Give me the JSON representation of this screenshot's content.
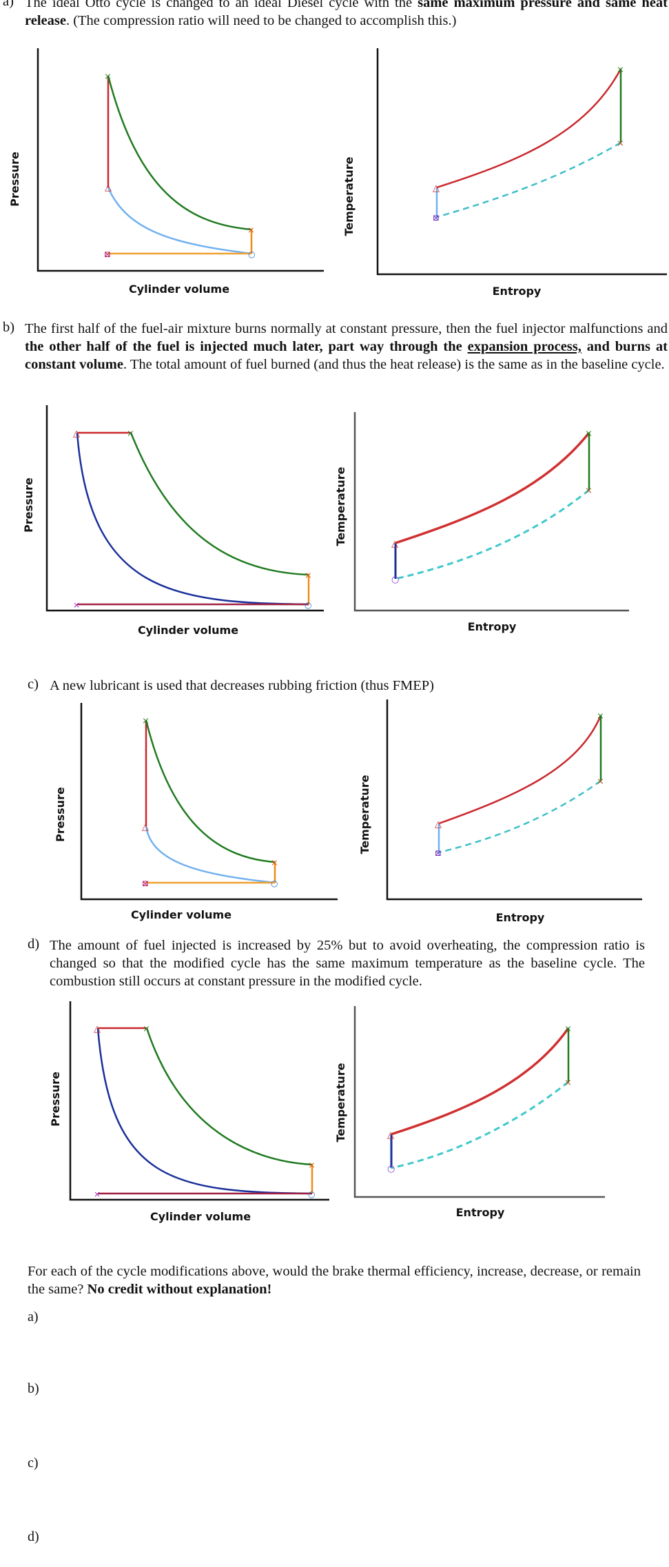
{
  "parts": [
    {
      "id": "a",
      "label": "a)",
      "segments": [
        {
          "t": "The ideal Otto cycle is changed to an ideal Diesel cycle with the ",
          "b": false
        },
        {
          "t": "same maximum pressure and same heat release",
          "b": true
        },
        {
          "t": ". (The compression ratio will need to be changed to accomplish this.)",
          "b": false
        }
      ],
      "pv": {
        "xlabel": "Cylinder volume",
        "ylabel": "Pressure"
      },
      "ts": {
        "xlabel": "Entropy",
        "ylabel": "Temperature"
      }
    },
    {
      "id": "b",
      "label": "b)",
      "segments": [
        {
          "t": "The first half of the fuel-air mixture burns normally at constant pressure, then the fuel injector malfunctions and ",
          "b": false
        },
        {
          "t": "the other half of the fuel is injected much later, part way through the ",
          "b": true
        },
        {
          "t": "expansion process,",
          "b": true,
          "u": true
        },
        {
          "t": " and burns at constant volume",
          "b": true
        },
        {
          "t": ". The total amount of fuel burned (and thus the heat release) is the same as in the baseline cycle.",
          "b": false
        }
      ],
      "pv": {
        "xlabel": "Cylinder volume",
        "ylabel": "Pressure"
      },
      "ts": {
        "xlabel": "Entropy",
        "ylabel": "Temperature"
      }
    },
    {
      "id": "c",
      "label": "c)",
      "segments": [
        {
          "t": "A new lubricant is used that decreases rubbing friction (thus FMEP)",
          "b": false
        }
      ],
      "pv": {
        "xlabel": "Cylinder volume",
        "ylabel": "Pressure"
      },
      "ts": {
        "xlabel": "Entropy",
        "ylabel": "Temperature"
      }
    },
    {
      "id": "d",
      "label": "d)",
      "segments": [
        {
          "t": "The amount of fuel injected is increased by 25% but to avoid overheating, the compression ratio is changed so that the modified cycle has the same maximum temperature as the baseline cycle. The combustion still occurs at constant pressure in the modified cycle.",
          "b": false
        }
      ],
      "pv": {
        "xlabel": "Cylinder volume",
        "ylabel": "Pressure"
      },
      "ts": {
        "xlabel": "Entropy",
        "ylabel": "Temperature"
      }
    }
  ],
  "question": {
    "text": "For each of the cycle modifications above, would the brake thermal efficiency, increase, decrease, or remain the same? ",
    "bold": "No credit without explanation!"
  },
  "answers": [
    "a)",
    "b)",
    "c)",
    "d)"
  ]
}
